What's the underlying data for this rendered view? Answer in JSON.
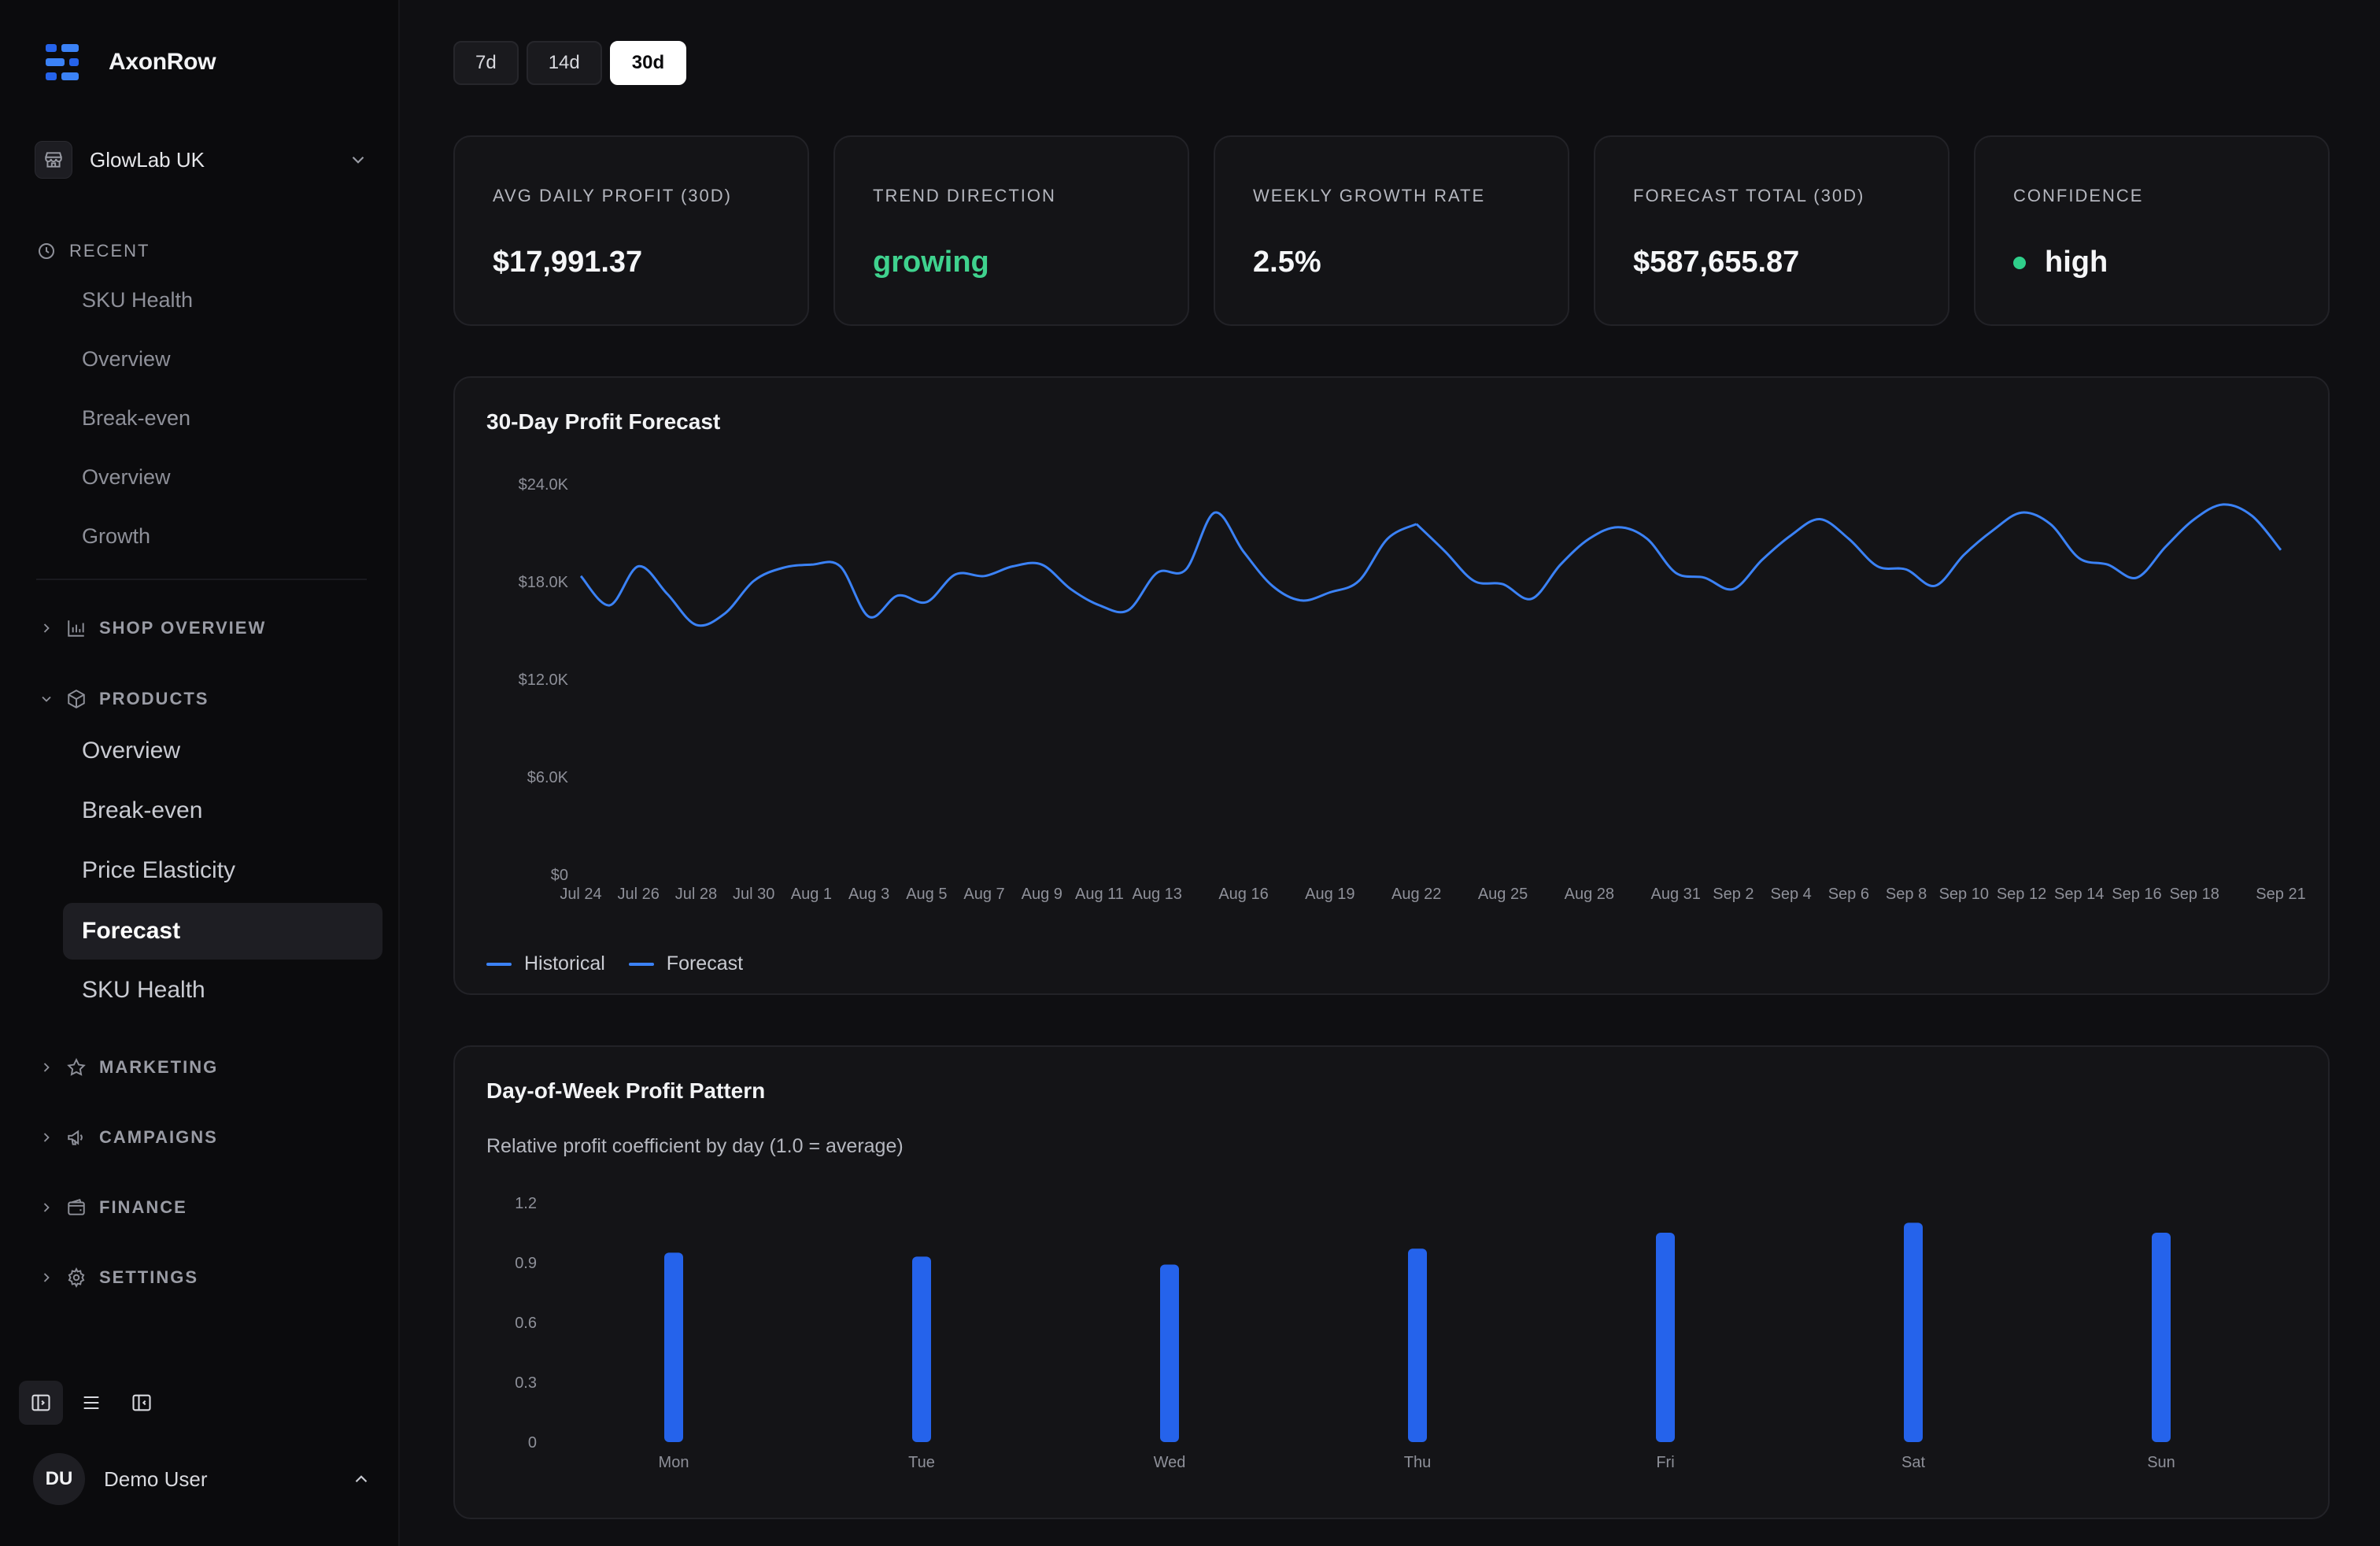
{
  "brand": {
    "name": "AxonRow"
  },
  "shop": {
    "name": "GlowLab UK"
  },
  "sidebar": {
    "recent_label": "RECENT",
    "recent": [
      "SKU Health",
      "Overview",
      "Break-even",
      "Overview",
      "Growth"
    ],
    "groups": {
      "shop_overview": "SHOP OVERVIEW",
      "products": "PRODUCTS",
      "marketing": "MARKETING",
      "campaigns": "CAMPAIGNS",
      "finance": "FINANCE",
      "settings": "SETTINGS"
    },
    "products_items": [
      "Overview",
      "Break-even",
      "Price Elasticity",
      "Forecast",
      "SKU Health"
    ],
    "active_item": "Forecast"
  },
  "user": {
    "initials": "DU",
    "name": "Demo User"
  },
  "range_tabs": [
    "7d",
    "14d",
    "30d"
  ],
  "range_active": "30d",
  "kpis": [
    {
      "label": "AVG DAILY PROFIT (30D)",
      "value": "$17,991.37"
    },
    {
      "label": "TREND DIRECTION",
      "value": "growing"
    },
    {
      "label": "WEEKLY GROWTH RATE",
      "value": "2.5%"
    },
    {
      "label": "FORECAST TOTAL (30D)",
      "value": "$587,655.87"
    },
    {
      "label": "CONFIDENCE",
      "value": "high"
    }
  ],
  "colors": {
    "accent": "#3b82f6",
    "bar": "#2563eb",
    "positive": "#3fd28e",
    "status_dot": "#2fcf8a"
  },
  "forecast_chart": {
    "title": "30-Day Profit Forecast",
    "legend": [
      "Historical",
      "Forecast"
    ]
  },
  "dow_chart": {
    "title": "Day-of-Week Profit Pattern",
    "subtitle": "Relative profit coefficient by day (1.0 = average)"
  },
  "chart_data": [
    {
      "type": "line",
      "title": "30-Day Profit Forecast",
      "ylim": [
        0,
        24000
      ],
      "y_ticks": [
        "$0",
        "$6.0K",
        "$12.0K",
        "$18.0K",
        "$24.0K"
      ],
      "y_tick_values": [
        0,
        6000,
        12000,
        18000,
        24000
      ],
      "x_ticks": [
        "Jul 24",
        "Jul 26",
        "Jul 28",
        "Jul 30",
        "Aug 1",
        "Aug 3",
        "Aug 5",
        "Aug 7",
        "Aug 9",
        "Aug 11",
        "Aug 13",
        "Aug 16",
        "Aug 19",
        "Aug 22",
        "Aug 25",
        "Aug 28",
        "Aug 31",
        "Sep 2",
        "Sep 4",
        "Sep 6",
        "Sep 8",
        "Sep 10",
        "Sep 12",
        "Sep 14",
        "Sep 16",
        "Sep 18",
        "Sep 21"
      ],
      "x_tick_days": [
        0,
        2,
        4,
        6,
        8,
        10,
        12,
        14,
        16,
        18,
        20,
        23,
        26,
        29,
        32,
        35,
        38,
        40,
        42,
        44,
        46,
        48,
        50,
        52,
        54,
        56,
        59
      ],
      "grid": false,
      "legend_placement": "bottom-left",
      "series": [
        {
          "name": "Historical",
          "values": [
            18300,
            16500,
            18900,
            17200,
            15300,
            16000,
            18000,
            18800,
            19000,
            18900,
            15800,
            17100,
            16700,
            18400,
            18300,
            18900,
            19000,
            17500,
            16500,
            16200,
            18500,
            18700,
            22200,
            19800,
            17700,
            16800,
            17300,
            18000,
            20600,
            21500
          ]
        },
        {
          "name": "Forecast",
          "values": [
            21500,
            19800,
            18000,
            17800,
            16900,
            19000,
            20600,
            21300,
            20600,
            18500,
            18200,
            17500,
            19300,
            20800,
            21800,
            20600,
            18900,
            18700,
            17700,
            19600,
            21100,
            22200,
            21500,
            19400,
            19000,
            18200,
            20100,
            21800,
            22700,
            22000,
            19900
          ]
        }
      ]
    },
    {
      "type": "bar",
      "title": "Day-of-Week Profit Pattern",
      "subtitle": "Relative profit coefficient by day (1.0 = average)",
      "categories": [
        "Mon",
        "Tue",
        "Wed",
        "Thu",
        "Fri",
        "Sat",
        "Sun"
      ],
      "values": [
        0.95,
        0.93,
        0.89,
        0.97,
        1.05,
        1.1,
        1.05
      ],
      "ylim": [
        0,
        1.2
      ],
      "y_ticks": [
        "0",
        "0.3",
        "0.6",
        "0.9",
        "1.2"
      ],
      "y_tick_values": [
        0,
        0.3,
        0.6,
        0.9,
        1.2
      ],
      "grid": false
    }
  ]
}
